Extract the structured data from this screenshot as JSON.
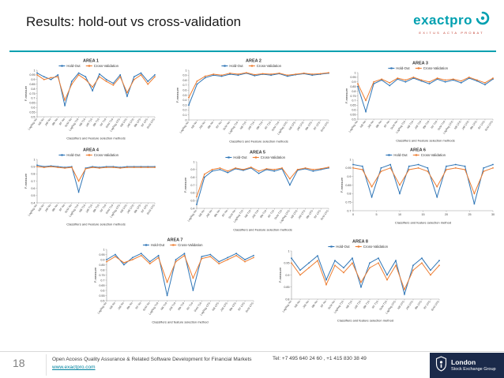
{
  "slide": {
    "title": "Results: hold-out vs cross-validation",
    "page_number": "18",
    "footer": {
      "line1": "Open Access Quality Assurance & Related Software Development for Financial Markets",
      "link": "www.exactpro.com",
      "tel": "Tel: +7 495 640 24 60 , +1 415 830 38 49"
    },
    "logo": {
      "text": "exactpro",
      "motto": "EXITUS ACTA PROBAT"
    },
    "lse_logo": {
      "line1": "London",
      "line2": "Stock Exchange Group"
    }
  },
  "colors": {
    "brand_teal": "#00a0b0",
    "hold_out": "#2e75b6",
    "cross_validation": "#ed7d31",
    "axis": "#999999",
    "tick_text": "#404040",
    "lse_navy": "#1b2a4a"
  },
  "chart_data": [
    {
      "type": "line",
      "title": "AREA 1",
      "xlabel": "Classifiers and Feature selection methods",
      "ylabel": "F-measure",
      "legend": [
        "Hold-Out",
        "Cross-Validation"
      ],
      "categories": [
        "LogReg No",
        "NB No",
        "J48 No",
        "IBk No",
        "RF No",
        "SVM No",
        "LogReg T10",
        "NB T10",
        "J48 T10",
        "IBk T10",
        "RF T10",
        "SVM T10",
        "LogReg CFS",
        "NB CFS",
        "J48 CFS",
        "IBk CFS",
        "RF CFS",
        "SVM CFS"
      ],
      "ylim": [
        0.5,
        1
      ],
      "yticks": [
        0.5,
        0.55,
        0.6,
        0.65,
        0.7,
        0.75,
        0.8,
        0.85,
        0.9,
        0.95,
        1
      ],
      "series": [
        {
          "name": "Hold-Out",
          "values": [
            0.97,
            0.93,
            0.9,
            0.95,
            0.62,
            0.88,
            0.97,
            0.93,
            0.78,
            0.96,
            0.9,
            0.86,
            0.95,
            0.72,
            0.93,
            0.97,
            0.88,
            0.95
          ]
        },
        {
          "name": "Cross-Validation",
          "values": [
            0.95,
            0.9,
            0.92,
            0.93,
            0.68,
            0.85,
            0.95,
            0.9,
            0.82,
            0.93,
            0.88,
            0.84,
            0.93,
            0.76,
            0.9,
            0.95,
            0.85,
            0.93
          ]
        }
      ]
    },
    {
      "type": "line",
      "title": "AREA 2",
      "xlabel": "Classifiers and Feature selection methods",
      "ylabel": "F-measure",
      "legend": [
        "Hold-Out",
        "Cross-Validation"
      ],
      "categories": [
        "LogReg No",
        "NB No",
        "J48 No",
        "IBk No",
        "RF No",
        "SVM No",
        "LogReg T10",
        "NB T10",
        "J48 T10",
        "IBk T10",
        "RF T10",
        "SVM T10",
        "LogReg CFS",
        "NB CFS",
        "J48 CFS",
        "IBk CFS",
        "RF CFS",
        "SVM CFS"
      ],
      "ylim": [
        0,
        1
      ],
      "yticks": [
        0,
        0.1,
        0.2,
        0.3,
        0.4,
        0.5,
        0.6,
        0.7,
        0.8,
        0.9,
        1
      ],
      "series": [
        {
          "name": "Hold-Out",
          "values": [
            0.3,
            0.72,
            0.85,
            0.9,
            0.88,
            0.92,
            0.9,
            0.94,
            0.89,
            0.92,
            0.9,
            0.93,
            0.88,
            0.91,
            0.93,
            0.9,
            0.92,
            0.94
          ]
        },
        {
          "name": "Cross-Validation",
          "values": [
            0.45,
            0.78,
            0.88,
            0.92,
            0.9,
            0.94,
            0.92,
            0.95,
            0.91,
            0.93,
            0.92,
            0.94,
            0.9,
            0.92,
            0.94,
            0.92,
            0.93,
            0.95
          ]
        }
      ]
    },
    {
      "type": "line",
      "title": "AREA 3",
      "xlabel": "Classifiers and Feature selection methods",
      "ylabel": "F-measure",
      "legend": [
        "Hold-Out",
        "Cross-Validation"
      ],
      "categories": [
        "LogReg No",
        "NB No",
        "J48 No",
        "IBk No",
        "RF No",
        "SVM No",
        "LogReg T10",
        "NB T10",
        "J48 T10",
        "IBk T10",
        "RF T10",
        "SVM T10",
        "LogReg CFS",
        "NB CFS",
        "J48 CFS",
        "IBk CFS",
        "RF CFS",
        "SVM CFS"
      ],
      "ylim": [
        0.5,
        1
      ],
      "yticks": [
        0.5,
        0.55,
        0.6,
        0.65,
        0.7,
        0.75,
        0.8,
        0.85,
        0.9,
        0.95,
        1
      ],
      "series": [
        {
          "name": "Hold-Out",
          "values": [
            0.85,
            0.58,
            0.88,
            0.92,
            0.86,
            0.93,
            0.9,
            0.94,
            0.91,
            0.88,
            0.93,
            0.9,
            0.92,
            0.89,
            0.94,
            0.91,
            0.87,
            0.93
          ]
        },
        {
          "name": "Cross-Validation",
          "values": [
            0.88,
            0.7,
            0.9,
            0.93,
            0.89,
            0.94,
            0.92,
            0.95,
            0.92,
            0.9,
            0.94,
            0.92,
            0.93,
            0.91,
            0.95,
            0.92,
            0.89,
            0.94
          ]
        }
      ]
    },
    {
      "type": "line",
      "title": "AREA 4",
      "xlabel": "Classifiers and Feature selection methods",
      "ylabel": "F-measure",
      "legend": [
        "Hold-Out",
        "Cross-Validation"
      ],
      "categories": [
        "LogReg No",
        "NB No",
        "J48 No",
        "IBk No",
        "RF No",
        "SVM No",
        "LogReg T10",
        "NB T10",
        "J48 T10",
        "IBk T10",
        "RF T10",
        "SVM T10",
        "LogReg CFS",
        "NB CFS",
        "J48 CFS",
        "IBk CFS",
        "RF CFS",
        "SVM CFS"
      ],
      "ylim": [
        0.4,
        1
      ],
      "yticks": [
        0.4,
        0.5,
        0.6,
        0.7,
        0.8,
        0.9,
        1
      ],
      "series": [
        {
          "name": "Hold-Out",
          "values": [
            0.92,
            0.9,
            0.91,
            0.9,
            0.89,
            0.9,
            0.55,
            0.88,
            0.9,
            0.89,
            0.9,
            0.9,
            0.89,
            0.9,
            0.9,
            0.9,
            0.9,
            0.9
          ]
        },
        {
          "name": "Cross-Validation",
          "values": [
            0.9,
            0.89,
            0.9,
            0.89,
            0.88,
            0.89,
            0.7,
            0.87,
            0.89,
            0.88,
            0.89,
            0.89,
            0.88,
            0.89,
            0.89,
            0.89,
            0.89,
            0.89
          ]
        }
      ]
    },
    {
      "type": "line",
      "title": "AREA 5",
      "xlabel": "Classifiers and Feature selection methods",
      "ylabel": "F-measure",
      "legend": [
        "Hold-Out",
        "Cross-Validation"
      ],
      "categories": [
        "LogReg No",
        "NB No",
        "J48 No",
        "IBk No",
        "RF No",
        "SVM No",
        "LogReg T10",
        "NB T10",
        "J48 T10",
        "IBk T10",
        "RF T10",
        "SVM T10",
        "LogReg CFS",
        "NB CFS",
        "J48 CFS",
        "IBk CFS",
        "RF CFS",
        "SVM CFS"
      ],
      "ylim": [
        0.4,
        1
      ],
      "yticks": [
        0.4,
        0.5,
        0.6,
        0.7,
        0.8,
        0.9,
        1
      ],
      "series": [
        {
          "name": "Hold-Out",
          "values": [
            0.45,
            0.8,
            0.88,
            0.9,
            0.86,
            0.91,
            0.89,
            0.92,
            0.85,
            0.9,
            0.88,
            0.91,
            0.7,
            0.89,
            0.91,
            0.88,
            0.9,
            0.92
          ]
        },
        {
          "name": "Cross-Validation",
          "values": [
            0.55,
            0.84,
            0.9,
            0.92,
            0.88,
            0.92,
            0.9,
            0.93,
            0.88,
            0.91,
            0.9,
            0.92,
            0.78,
            0.9,
            0.92,
            0.9,
            0.91,
            0.93
          ]
        }
      ]
    },
    {
      "type": "line",
      "title": "AREA 6",
      "xlabel": "Classifiers and feature selection method",
      "ylabel": "F-measure",
      "legend": [
        "Hold-Out",
        "Cross-Validation"
      ],
      "x": [
        0,
        2,
        4,
        6,
        8,
        10,
        12,
        14,
        16,
        18,
        20,
        22,
        24,
        26,
        28,
        30
      ],
      "xticks": [
        0,
        5,
        10,
        15,
        20,
        25,
        30
      ],
      "ylim": [
        0.7,
        1
      ],
      "yticks": [
        0.7,
        0.75,
        0.8,
        0.85,
        0.9,
        0.95,
        1
      ],
      "series": [
        {
          "name": "Hold-Out",
          "values": [
            0.97,
            0.96,
            0.78,
            0.95,
            0.97,
            0.8,
            0.96,
            0.97,
            0.95,
            0.78,
            0.96,
            0.97,
            0.96,
            0.74,
            0.95,
            0.97
          ]
        },
        {
          "name": "Cross-Validation",
          "values": [
            0.95,
            0.94,
            0.84,
            0.93,
            0.95,
            0.85,
            0.94,
            0.95,
            0.93,
            0.84,
            0.94,
            0.95,
            0.94,
            0.8,
            0.93,
            0.95
          ]
        }
      ]
    },
    {
      "type": "line",
      "title": "AREA 7",
      "xlabel": "Classifiers and feature selection method",
      "ylabel": "F-measure",
      "legend": [
        "Hold-Out",
        "Cross-Validation"
      ],
      "categories": [
        "LogReg No",
        "NB No",
        "J48 No",
        "IBk No",
        "RF No",
        "SVM No",
        "LogReg T10",
        "NB T10",
        "J48 T10",
        "IBk T10",
        "RF T10",
        "SVM T10",
        "LogReg CFS",
        "NB CFS",
        "J48 CFS",
        "IBk CFS",
        "RF CFS",
        "SVM CFS"
      ],
      "ylim": [
        0.5,
        1
      ],
      "yticks": [
        0.5,
        0.55,
        0.6,
        0.65,
        0.7,
        0.75,
        0.8,
        0.85,
        0.9,
        0.95,
        1
      ],
      "series": [
        {
          "name": "Hold-Out",
          "values": [
            0.9,
            0.95,
            0.85,
            0.92,
            0.96,
            0.88,
            0.94,
            0.55,
            0.9,
            0.96,
            0.6,
            0.93,
            0.95,
            0.88,
            0.92,
            0.96,
            0.9,
            0.94
          ]
        },
        {
          "name": "Cross-Validation",
          "values": [
            0.88,
            0.93,
            0.87,
            0.9,
            0.94,
            0.86,
            0.92,
            0.68,
            0.88,
            0.94,
            0.72,
            0.91,
            0.93,
            0.86,
            0.9,
            0.94,
            0.88,
            0.92
          ]
        }
      ]
    },
    {
      "type": "line",
      "title": "AREA 8",
      "xlabel": "Classifiers and feature selection method",
      "ylabel": "F-measure",
      "legend": [
        "Hold-Out",
        "Cross-Validation"
      ],
      "categories": [
        "LogReg No",
        "NB No",
        "J48 No",
        "IBk No",
        "RF No",
        "SVM No",
        "LogReg T10",
        "NB T10",
        "J48 T10",
        "IBk T10",
        "RF T10",
        "SVM T10",
        "LogReg CFS",
        "NB CFS",
        "J48 CFS",
        "IBk CFS",
        "RF CFS",
        "SVM CFS"
      ],
      "ylim": [
        0.8,
        1
      ],
      "yticks": [
        0.8,
        0.85,
        0.9,
        0.95,
        1
      ],
      "series": [
        {
          "name": "Hold-Out",
          "values": [
            0.97,
            0.92,
            0.95,
            0.98,
            0.88,
            0.96,
            0.93,
            0.97,
            0.85,
            0.95,
            0.97,
            0.9,
            0.96,
            0.82,
            0.94,
            0.97,
            0.92,
            0.96
          ]
        },
        {
          "name": "Cross-Validation",
          "values": [
            0.95,
            0.9,
            0.93,
            0.96,
            0.86,
            0.94,
            0.91,
            0.95,
            0.87,
            0.93,
            0.95,
            0.88,
            0.94,
            0.84,
            0.92,
            0.95,
            0.9,
            0.94
          ]
        }
      ]
    }
  ]
}
